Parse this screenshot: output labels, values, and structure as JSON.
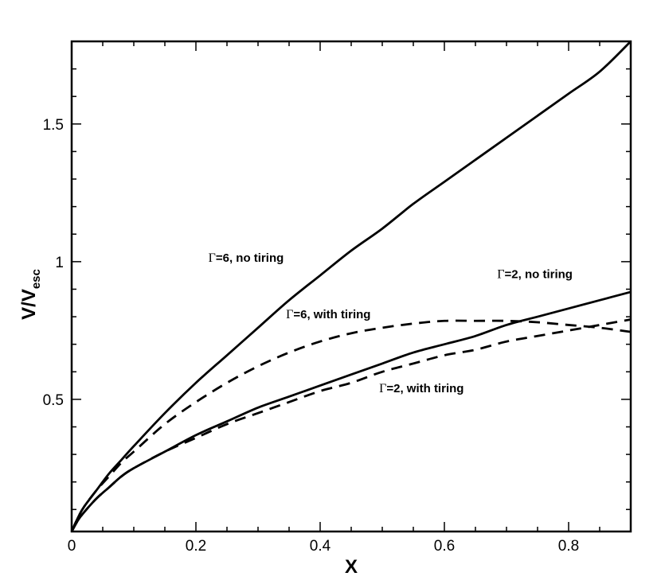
{
  "chart_data": {
    "type": "line",
    "title": "",
    "xlabel": "X",
    "ylabel": {
      "main": "V/V",
      "sub": "esc"
    },
    "xlim": [
      0,
      0.9
    ],
    "ylim": [
      0.02,
      1.8
    ],
    "x_ticks": [
      0,
      0.2,
      0.4,
      0.6,
      0.8
    ],
    "x_tick_labels": [
      "0",
      "0.2",
      "0.4",
      "0.6",
      "0.8"
    ],
    "y_ticks": [
      0.5,
      1,
      1.5
    ],
    "y_tick_labels": [
      "0.5",
      "1",
      "1.5"
    ],
    "grid": false,
    "legend": "none",
    "series": [
      {
        "id": "g6-no-tiring",
        "style": "solid",
        "x": [
          0,
          0.01,
          0.02,
          0.04,
          0.06,
          0.08,
          0.1,
          0.15,
          0.2,
          0.25,
          0.3,
          0.35,
          0.4,
          0.45,
          0.5,
          0.55,
          0.6,
          0.65,
          0.7,
          0.75,
          0.8,
          0.85,
          0.9
        ],
        "y": [
          0.02,
          0.07,
          0.11,
          0.17,
          0.23,
          0.28,
          0.33,
          0.45,
          0.56,
          0.66,
          0.76,
          0.86,
          0.95,
          1.04,
          1.12,
          1.21,
          1.29,
          1.37,
          1.45,
          1.53,
          1.61,
          1.69,
          1.8
        ]
      },
      {
        "id": "g2-no-tiring",
        "style": "solid",
        "x": [
          0,
          0.01,
          0.02,
          0.04,
          0.06,
          0.08,
          0.1,
          0.15,
          0.2,
          0.25,
          0.3,
          0.35,
          0.4,
          0.45,
          0.5,
          0.55,
          0.6,
          0.65,
          0.7,
          0.75,
          0.8,
          0.85,
          0.9
        ],
        "y": [
          0.02,
          0.06,
          0.09,
          0.14,
          0.18,
          0.22,
          0.25,
          0.31,
          0.37,
          0.42,
          0.47,
          0.51,
          0.55,
          0.59,
          0.63,
          0.67,
          0.7,
          0.73,
          0.77,
          0.8,
          0.83,
          0.86,
          0.89
        ]
      },
      {
        "id": "g6-with-tiring",
        "style": "dashed",
        "x": [
          0,
          0.01,
          0.02,
          0.04,
          0.06,
          0.08,
          0.1,
          0.15,
          0.2,
          0.25,
          0.3,
          0.35,
          0.4,
          0.45,
          0.5,
          0.55,
          0.6,
          0.65,
          0.7,
          0.75,
          0.8,
          0.85,
          0.9
        ],
        "y": [
          0.02,
          0.07,
          0.11,
          0.17,
          0.22,
          0.27,
          0.31,
          0.41,
          0.49,
          0.56,
          0.62,
          0.67,
          0.71,
          0.74,
          0.76,
          0.775,
          0.785,
          0.785,
          0.785,
          0.78,
          0.77,
          0.76,
          0.745
        ]
      },
      {
        "id": "g2-with-tiring",
        "style": "dashed",
        "x": [
          0,
          0.01,
          0.02,
          0.04,
          0.06,
          0.08,
          0.1,
          0.15,
          0.2,
          0.25,
          0.3,
          0.35,
          0.4,
          0.45,
          0.5,
          0.55,
          0.6,
          0.65,
          0.7,
          0.75,
          0.8,
          0.85,
          0.9
        ],
        "y": [
          0.02,
          0.06,
          0.09,
          0.14,
          0.18,
          0.22,
          0.25,
          0.31,
          0.36,
          0.41,
          0.45,
          0.49,
          0.53,
          0.56,
          0.6,
          0.63,
          0.66,
          0.68,
          0.71,
          0.73,
          0.75,
          0.77,
          0.79
        ]
      }
    ],
    "annotations": [
      {
        "id": "g6-no-tiring-label",
        "symbol": "Γ",
        "text": "=6, no tiring",
        "x": 0.22,
        "y": 1.0
      },
      {
        "id": "g2-no-tiring-label",
        "symbol": "Γ",
        "text": "=2, no tiring",
        "x": 0.685,
        "y": 0.94
      },
      {
        "id": "g6-with-tiring-label",
        "symbol": "Γ",
        "text": "=6, with tiring",
        "x": 0.345,
        "y": 0.795
      },
      {
        "id": "g2-with-tiring-label",
        "symbol": "Γ",
        "text": "=2, with tiring",
        "x": 0.495,
        "y": 0.525
      }
    ]
  }
}
